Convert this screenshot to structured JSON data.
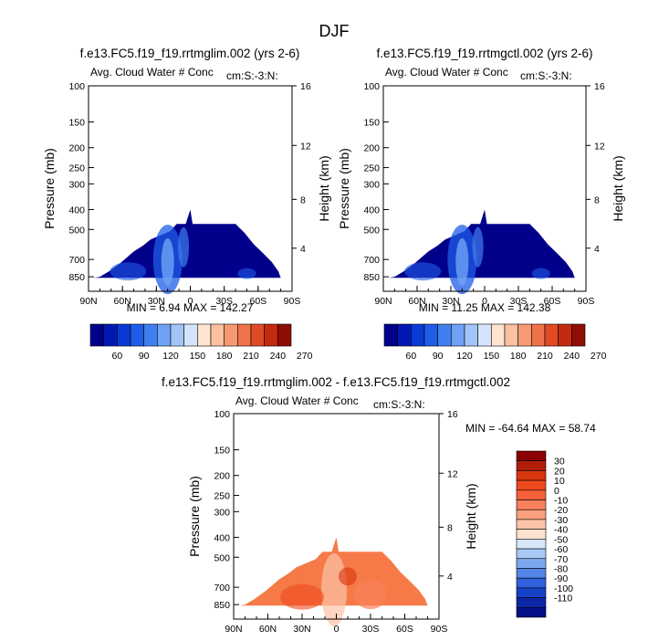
{
  "figure_title": "DJF",
  "chart_data": [
    {
      "type": "heatmap",
      "title": "f.e13.FC5.f19_f19.rrtmglim.002 (yrs 2-6)",
      "subtitle": "Avg. Cloud Water # Conc",
      "units_label": "cm:S:-3:N:",
      "ylabel": "Pressure (mb)",
      "ylabel_right": "Height (km)",
      "x_ticks": [
        "90N",
        "60N",
        "30N",
        "0",
        "30S",
        "60S",
        "90S"
      ],
      "y_ticks": [
        "100",
        "150",
        "200",
        "250",
        "300",
        "400",
        "500",
        "700",
        "850"
      ],
      "y_ticks_right": [
        "16",
        "12",
        "8",
        "4"
      ],
      "ylim": [
        1000,
        100
      ],
      "min_label": "MIN =",
      "min_value": "6.94",
      "max_label": "MAX =",
      "max_value": "142.27",
      "colorbar": {
        "orientation": "horizontal",
        "levels": [
          "60",
          "90",
          "120",
          "150",
          "180",
          "210",
          "240",
          "270"
        ]
      }
    },
    {
      "type": "heatmap",
      "title": "f.e13.FC5.f19_f19.rrtmgctl.002 (yrs 2-6)",
      "subtitle": "Avg. Cloud Water # Conc",
      "units_label": "cm:S:-3:N:",
      "ylabel": "Pressure (mb)",
      "ylabel_right": "Height (km)",
      "x_ticks": [
        "90N",
        "60N",
        "30N",
        "0",
        "30S",
        "60S",
        "90S"
      ],
      "y_ticks": [
        "100",
        "150",
        "200",
        "250",
        "300",
        "400",
        "500",
        "700",
        "850"
      ],
      "y_ticks_right": [
        "16",
        "12",
        "8",
        "4"
      ],
      "ylim": [
        1000,
        100
      ],
      "min_label": "MIN =",
      "min_value": "11.25",
      "max_label": "MAX =",
      "max_value": "142.38",
      "colorbar": {
        "orientation": "horizontal",
        "levels": [
          "60",
          "90",
          "120",
          "150",
          "180",
          "210",
          "240",
          "270"
        ]
      }
    },
    {
      "type": "heatmap",
      "title": "f.e13.FC5.f19_f19.rrtmglim.002 - f.e13.FC5.f19_f19.rrtmgctl.002",
      "subtitle": "Avg. Cloud Water # Conc",
      "units_label": "cm:S:-3:N:",
      "ylabel": "Pressure (mb)",
      "ylabel_right": "Height (km)",
      "x_ticks": [
        "90N",
        "60N",
        "30N",
        "0",
        "30S",
        "60S",
        "90S"
      ],
      "y_ticks": [
        "100",
        "150",
        "200",
        "250",
        "300",
        "400",
        "500",
        "700",
        "850"
      ],
      "y_ticks_right": [
        "16",
        "12",
        "8",
        "4"
      ],
      "ylim": [
        1000,
        100
      ],
      "min_label": "MIN =",
      "min_value": "-64.64",
      "max_label": "MAX =",
      "max_value": "58.74",
      "colorbar": {
        "orientation": "vertical",
        "levels": [
          "30",
          "20",
          "10",
          "0",
          "-10",
          "-20",
          "-30",
          "-40",
          "-50",
          "-60",
          "-70",
          "-80",
          "-90",
          "-100",
          "-110"
        ]
      }
    }
  ],
  "colors": {
    "abs_scale": [
      "#00008b",
      "#0019b5",
      "#0a3ad4",
      "#1f5ce8",
      "#3f7ff0",
      "#6fa2f5",
      "#a3c4f9",
      "#d5e4fc",
      "#fde3d0",
      "#fbc0a0",
      "#f79a73",
      "#f07248",
      "#e04a24",
      "#c22b10",
      "#8e0e05"
    ],
    "diff_scale": [
      "#8b0000",
      "#b01e08",
      "#d8360f",
      "#ef4a1e",
      "#f7603a",
      "#f9805a",
      "#fba07e",
      "#fcc3a8",
      "#fde2cf",
      "#d8e6fa",
      "#a9c8f4",
      "#7ea8ee",
      "#5585e6",
      "#2f62dc",
      "#1642c8",
      "#0b27a8",
      "#050f86"
    ],
    "field_abs": "#00008b",
    "field_diff": "#f57a48"
  }
}
